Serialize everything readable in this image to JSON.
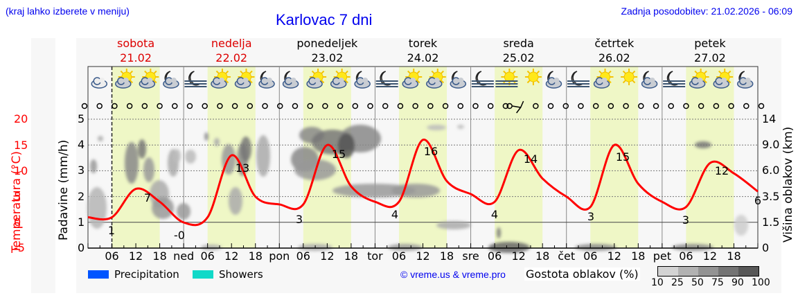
{
  "header": {
    "note": "(kraj lahko izberete v meniju)",
    "title": "Karlovac 7 dni",
    "updated": "Zadnja posodobitev: 21.02.2026 - 06:09"
  },
  "days": [
    {
      "name": "sobota",
      "date": "21.02",
      "color": "#dd0000"
    },
    {
      "name": "nedelja",
      "date": "22.02",
      "color": "#dd0000"
    },
    {
      "name": "ponedeljek",
      "date": "23.02",
      "color": "#000000"
    },
    {
      "name": "torek",
      "date": "24.02",
      "color": "#000000"
    },
    {
      "name": "sreda",
      "date": "25.02",
      "color": "#000000"
    },
    {
      "name": "četrtek",
      "date": "26.02",
      "color": "#000000"
    },
    {
      "name": "petek",
      "date": "27.02",
      "color": "#000000"
    }
  ],
  "weather_icons": [
    "cloudy",
    "partly-cloudy-day",
    "partly-cloudy-day",
    "partly-cloudy-night",
    "fog-night",
    "partly-cloudy-day",
    "partly-cloudy-day",
    "partly-cloudy-night",
    "partly-cloudy-night",
    "partly-cloudy-day",
    "partly-cloudy-day",
    "partly-cloudy-night",
    "fog-night",
    "partly-cloudy-day",
    "partly-cloudy-day",
    "partly-cloudy-night",
    "fog-night",
    "fog-day",
    "sunny",
    "partly-cloudy-night",
    "fog-night",
    "partly-cloudy-day",
    "sunny",
    "partly-cloudy-night",
    "fog-night",
    "partly-cloudy-day",
    "partly-cloudy-day",
    "partly-cloudy-night"
  ],
  "axes": {
    "left_temp_label": "Temperatura (°C)",
    "left_temp_ticks": [
      "20",
      "15",
      "10",
      "5",
      "0",
      "-5"
    ],
    "left_precip_label": "Padavine (mm/h)",
    "left_precip_ticks": [
      "5",
      "4",
      "3",
      "2",
      "1",
      "0"
    ],
    "right_label": "Višina oblakov (km)",
    "right_ticks": [
      "14",
      "9.0",
      "6.0",
      "3.5",
      "1.5",
      "0"
    ],
    "x_ticks": [
      "06",
      "12",
      "18",
      "ned",
      "06",
      "12",
      "18",
      "pon",
      "06",
      "12",
      "18",
      "tor",
      "06",
      "12",
      "18",
      "sre",
      "06",
      "12",
      "18",
      "čet",
      "06",
      "12",
      "18",
      "pet",
      "06",
      "12",
      "18"
    ]
  },
  "legend": {
    "precipitation": "Precipitation",
    "precipitation_color": "#0055ff",
    "showers": "Showers",
    "showers_color": "#11d9c8",
    "copyright": "© vreme.us & vreme.pro",
    "cloud_density_label": "Gostota oblakov (%)",
    "cloud_scale": [
      "10",
      "25",
      "50",
      "75",
      "90",
      "100"
    ],
    "cloud_scale_colors": [
      "#d3d3d3",
      "#b2b2b2",
      "#939393",
      "#747474",
      "#585858"
    ]
  },
  "chart_data": {
    "type": "line",
    "title": "Karlovac 7 dni",
    "xlabel": "",
    "ylabel": "Temperatura (°C)",
    "ylim": [
      -5,
      20
    ],
    "x": [
      "Sat 00",
      "Sat 06",
      "Sat 12",
      "Sat 18",
      "Sun 00",
      "Sun 06",
      "Sun 12",
      "Sun 18",
      "Mon 00",
      "Mon 06",
      "Mon 12",
      "Mon 18",
      "Tue 00",
      "Tue 06",
      "Tue 12",
      "Tue 18",
      "Wed 00",
      "Wed 06",
      "Wed 12",
      "Wed 18",
      "Thu 00",
      "Thu 06",
      "Thu 12",
      "Thu 18",
      "Fri 00",
      "Fri 06",
      "Fri 12",
      "Fri 18",
      "Sat 00"
    ],
    "series": [
      {
        "name": "Temperatura",
        "color": "#ff0000",
        "values": [
          1,
          1,
          6.5,
          4,
          0,
          1,
          13,
          5,
          3.5,
          3.5,
          15,
          7,
          4,
          4,
          16,
          8,
          5.5,
          4,
          14,
          8.5,
          5,
          3,
          15,
          7.5,
          4,
          3,
          11.5,
          9.5,
          6
        ]
      }
    ],
    "annotations": [
      {
        "label": "1",
        "x": "Sat 06"
      },
      {
        "label": "7",
        "x": "Sat 15"
      },
      {
        "label": "-0",
        "x": "Sun 00"
      },
      {
        "label": "13",
        "x": "Sun 14"
      },
      {
        "label": "3",
        "x": "Mon 03"
      },
      {
        "label": "15",
        "x": "Mon 14"
      },
      {
        "label": "4",
        "x": "Tue 02"
      },
      {
        "label": "16",
        "x": "Tue 14"
      },
      {
        "label": "4",
        "x": "Wed 06"
      },
      {
        "label": "14",
        "x": "Wed 15"
      },
      {
        "label": "3",
        "x": "Thu 06"
      },
      {
        "label": "15",
        "x": "Thu 14"
      },
      {
        "label": "3",
        "x": "Fri 06"
      },
      {
        "label": "12",
        "x": "Fri 15"
      },
      {
        "label": "6",
        "x": "Sat 00"
      }
    ],
    "secondary_axes": {
      "precipitation_mm_h": [
        0,
        5
      ],
      "cloud_height_km_ticks": [
        0,
        1.5,
        3.5,
        6.0,
        9.0,
        14
      ]
    },
    "precipitation": [],
    "grid": true
  }
}
